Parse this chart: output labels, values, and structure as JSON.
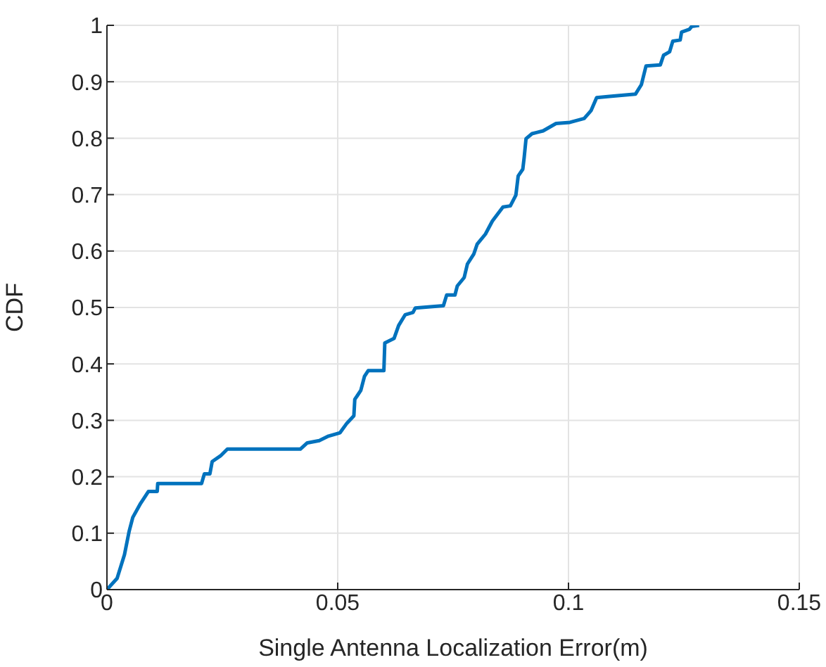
{
  "chart_data": {
    "type": "line",
    "xlabel": "Single Antenna Localization Error(m)",
    "ylabel": "CDF",
    "xlim": [
      0,
      0.15
    ],
    "xticks": [
      0,
      0.05,
      0.1,
      0.15
    ],
    "ylim": [
      0,
      1
    ],
    "yticks": [
      0,
      0.1,
      0.2,
      0.3,
      0.4,
      0.5,
      0.6,
      0.7,
      0.8,
      0.9,
      1
    ],
    "grid": true,
    "legend": false,
    "marker": "none",
    "line_style": "solid",
    "series": [
      {
        "color": "#0072bd",
        "x": [
          0,
          0.0022,
          0.0038,
          0.0048,
          0.0056,
          0.0073,
          0.009,
          0.0109,
          0.011,
          0.0205,
          0.0211,
          0.0223,
          0.0228,
          0.0246,
          0.0261,
          0.0419,
          0.0434,
          0.046,
          0.048,
          0.0505,
          0.052,
          0.0535,
          0.0537,
          0.055,
          0.0558,
          0.0566,
          0.06,
          0.0602,
          0.0622,
          0.0632,
          0.0646,
          0.0663,
          0.0668,
          0.0729,
          0.0736,
          0.0754,
          0.0759,
          0.0774,
          0.0781,
          0.0795,
          0.0802,
          0.082,
          0.0835,
          0.0858,
          0.0874,
          0.0886,
          0.0891,
          0.0901,
          0.0904,
          0.0908,
          0.0921,
          0.0945,
          0.0973,
          0.1003,
          0.1034,
          0.1049,
          0.1061,
          0.1089,
          0.1145,
          0.1158,
          0.1168,
          0.1199,
          0.1206,
          0.1219,
          0.1226,
          0.1242,
          0.1245,
          0.1262,
          0.1267,
          0.1283
        ],
        "values": [
          0,
          0.02,
          0.062,
          0.103,
          0.128,
          0.153,
          0.174,
          0.174,
          0.188,
          0.188,
          0.205,
          0.205,
          0.227,
          0.237,
          0.249,
          0.249,
          0.26,
          0.264,
          0.272,
          0.278,
          0.295,
          0.308,
          0.337,
          0.353,
          0.378,
          0.388,
          0.388,
          0.437,
          0.445,
          0.468,
          0.487,
          0.491,
          0.499,
          0.503,
          0.522,
          0.522,
          0.538,
          0.553,
          0.577,
          0.595,
          0.612,
          0.63,
          0.653,
          0.678,
          0.68,
          0.699,
          0.733,
          0.745,
          0.766,
          0.799,
          0.808,
          0.813,
          0.826,
          0.828,
          0.835,
          0.849,
          0.872,
          0.874,
          0.878,
          0.895,
          0.928,
          0.93,
          0.947,
          0.953,
          0.972,
          0.974,
          0.988,
          0.993,
          0.998,
          1
        ]
      }
    ]
  }
}
